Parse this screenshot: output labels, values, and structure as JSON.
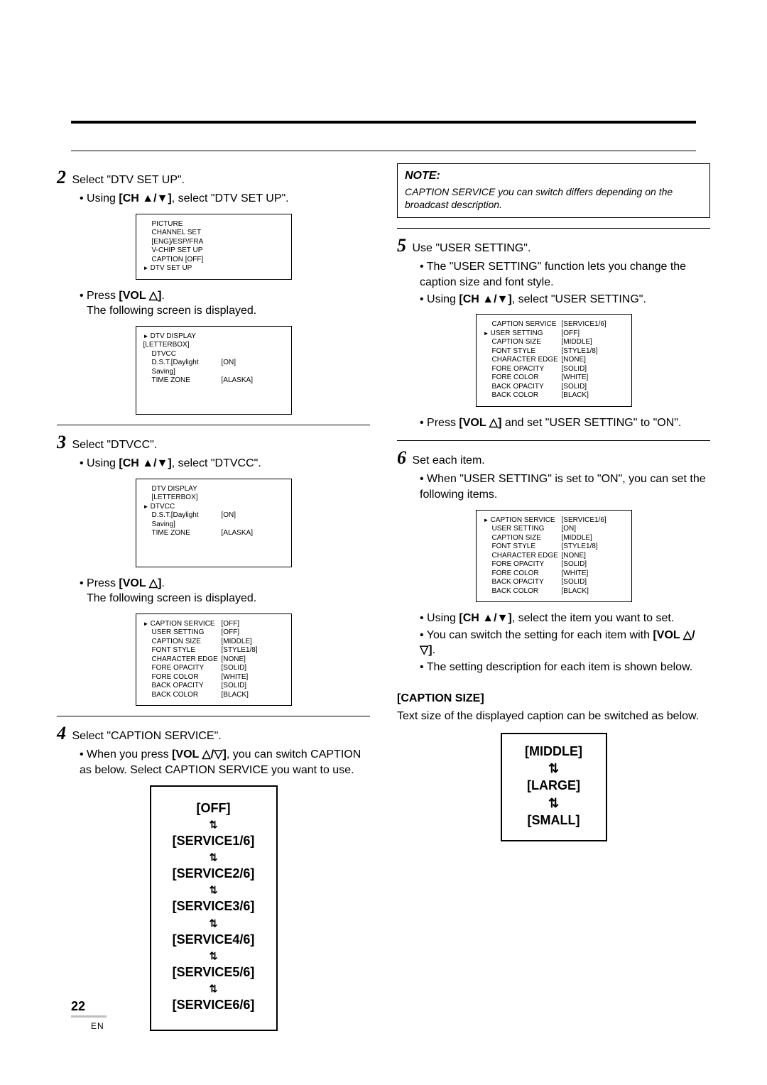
{
  "page": {
    "number": "22",
    "locale": "EN"
  },
  "left": {
    "step2": {
      "title": "Select \"DTV SET UP\".",
      "bullet1_prefix": "Using ",
      "bullet1_bold": "[CH ▲/▼]",
      "bullet1_suffix": ", select \"DTV SET UP\".",
      "screen1_rows": [
        {
          "label": "PICTURE",
          "val": ""
        },
        {
          "label": "CHANNEL SET",
          "val": ""
        },
        {
          "label": "[ENG]/ESP/FRA",
          "val": ""
        },
        {
          "label": "V-CHIP SET UP",
          "val": ""
        },
        {
          "label": "CAPTION [OFF]",
          "val": ""
        },
        {
          "label": "DTV SET UP",
          "val": "",
          "ptr": true
        }
      ],
      "bullet2_prefix": "Press ",
      "bullet2_bold": "[VOL △]",
      "bullet2_suffix": ".",
      "bullet2_line2": "The following screen is displayed.",
      "screen2_rows": [
        {
          "label": "DTV DISPLAY [LETTERBOX]",
          "val": "",
          "ptr": true
        },
        {
          "label": "DTVCC",
          "val": ""
        },
        {
          "label": "D.S.T.[Daylight Saving]",
          "val": "[ON]"
        },
        {
          "label": "TIME ZONE",
          "val": "[ALASKA]"
        }
      ]
    },
    "step3": {
      "title": "Select \"DTVCC\".",
      "bullet1_prefix": "Using ",
      "bullet1_bold": "[CH ▲/▼]",
      "bullet1_suffix": ", select \"DTVCC\".",
      "screen1_rows": [
        {
          "label": "DTV DISPLAY [LETTERBOX]",
          "val": ""
        },
        {
          "label": "DTVCC",
          "val": "",
          "ptr": true
        },
        {
          "label": "D.S.T.[Daylight Saving]",
          "val": "[ON]"
        },
        {
          "label": "TIME ZONE",
          "val": "[ALASKA]"
        }
      ],
      "bullet2_prefix": "Press ",
      "bullet2_bold": "[VOL △]",
      "bullet2_suffix": ".",
      "bullet2_line2": "The following screen is displayed.",
      "screen2_rows": [
        {
          "label": "CAPTION SERVICE",
          "val": "[OFF]",
          "ptr": true
        },
        {
          "label": "USER SETTING",
          "val": "[OFF]"
        },
        {
          "label": "CAPTION SIZE",
          "val": "[MIDDLE]"
        },
        {
          "label": "FONT STYLE",
          "val": "[STYLE1/8]"
        },
        {
          "label": "CHARACTER EDGE",
          "val": "[NONE]"
        },
        {
          "label": "FORE OPACITY",
          "val": "[SOLID]"
        },
        {
          "label": "FORE COLOR",
          "val": "[WHITE]"
        },
        {
          "label": "BACK OPACITY",
          "val": "[SOLID]"
        },
        {
          "label": "BACK COLOR",
          "val": "[BLACK]"
        }
      ]
    },
    "step4": {
      "title": "Select \"CAPTION SERVICE\".",
      "bullet1_prefix": "When you press ",
      "bullet1_bold": "[VOL △/▽]",
      "bullet1_suffix": ", you can switch CAPTION as below. Select CAPTION SERVICE you want to use.",
      "cycle": [
        "[OFF]",
        "[SERVICE1/6]",
        "[SERVICE2/6]",
        "[SERVICE3/6]",
        "[SERVICE4/6]",
        "[SERVICE5/6]",
        "[SERVICE6/6]"
      ]
    }
  },
  "right": {
    "note": {
      "head": "NOTE:",
      "body": "CAPTION SERVICE you can switch differs depending on the broadcast description."
    },
    "step5": {
      "title": "Use \"USER SETTING\".",
      "b1": "The \"USER SETTING\" function lets you change the caption size and font style.",
      "b2_prefix": "Using ",
      "b2_bold": "[CH ▲/▼]",
      "b2_suffix": ", select \"USER SETTING\".",
      "screen_rows": [
        {
          "label": "CAPTION SERVICE",
          "val": "[SERVICE1/6]"
        },
        {
          "label": "USER SETTING",
          "val": "[OFF]",
          "ptr": true
        },
        {
          "label": "CAPTION SIZE",
          "val": "[MIDDLE]"
        },
        {
          "label": "FONT STYLE",
          "val": "[STYLE1/8]"
        },
        {
          "label": "CHARACTER EDGE",
          "val": "[NONE]"
        },
        {
          "label": "FORE OPACITY",
          "val": "[SOLID]"
        },
        {
          "label": "FORE COLOR",
          "val": "[WHITE]"
        },
        {
          "label": "BACK OPACITY",
          "val": "[SOLID]"
        },
        {
          "label": "BACK COLOR",
          "val": "[BLACK]"
        }
      ],
      "b3_prefix": "Press ",
      "b3_bold": "[VOL △]",
      "b3_suffix": " and set \"USER SETTING\" to \"ON\"."
    },
    "step6": {
      "title": "Set each item.",
      "b1": "When \"USER SETTING\" is set to \"ON\", you can set the following items.",
      "screen_rows": [
        {
          "label": "CAPTION SERVICE",
          "val": "[SERVICE1/6]",
          "ptr": true
        },
        {
          "label": "USER SETTING",
          "val": "[ON]"
        },
        {
          "label": "CAPTION SIZE",
          "val": "[MIDDLE]"
        },
        {
          "label": "FONT STYLE",
          "val": "[STYLE1/8]"
        },
        {
          "label": "CHARACTER EDGE",
          "val": "[NONE]"
        },
        {
          "label": "FORE OPACITY",
          "val": "[SOLID]"
        },
        {
          "label": "FORE COLOR",
          "val": "[WHITE]"
        },
        {
          "label": "BACK OPACITY",
          "val": "[SOLID]"
        },
        {
          "label": "BACK COLOR",
          "val": "[BLACK]"
        }
      ],
      "b2_prefix": "Using ",
      "b2_bold": "[CH ▲/▼]",
      "b2_suffix": ", select the item you want to set.",
      "b3_prefix": "You can switch the setting for each item with ",
      "b3_bold": "[VOL △/▽]",
      "b3_suffix": ".",
      "b4": "The setting description for each item is shown below."
    },
    "caption_size": {
      "head": "[CAPTION SIZE]",
      "body": "Text size of the displayed caption can be switched as below.",
      "cycle": [
        "[MIDDLE]",
        "[LARGE]",
        "[SMALL]"
      ]
    }
  }
}
